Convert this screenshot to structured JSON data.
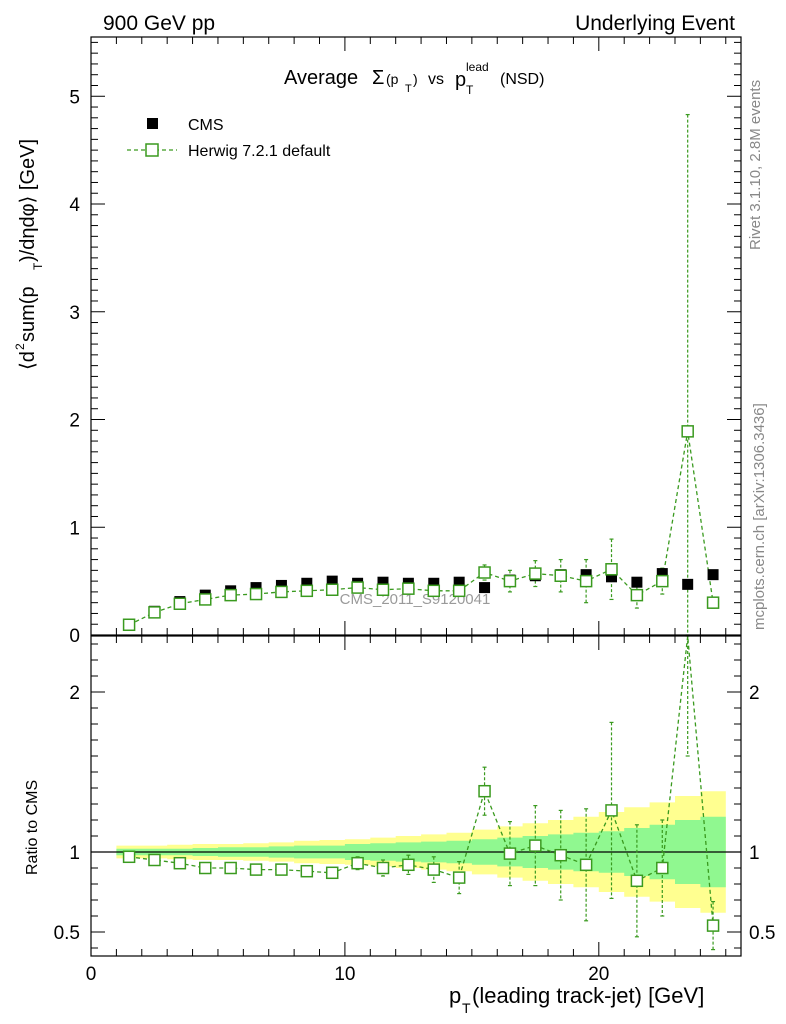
{
  "header": {
    "left": "900 GeV pp",
    "right": "Underlying Event"
  },
  "title": {
    "prefix": "Average",
    "sigma": "Σ",
    "pt_open": "(p",
    "pt_sub": "T",
    "pt_close": ")",
    "vs": "vs",
    "p": "p",
    "lead_sup": "lead",
    "t_sub": "T",
    "suffix": "(NSD)"
  },
  "side_labels": {
    "rivet": "Rivet 3.1.10,  2.8M events",
    "mcplots": "mcplots.cern.ch [arXiv:1306.3436]"
  },
  "watermark": "CMS_2011_S9120041",
  "legend": {
    "data_label": "CMS",
    "mc_label": "Herwig 7.2.1 default"
  },
  "axes": {
    "ylabel_main": {
      "open": "⟨d",
      "sup2": "2",
      "mid": " sum(p",
      "sub": "T",
      "close": ")/dηdφ⟩ [GeV]"
    },
    "ylabel_ratio": "Ratio to CMS",
    "xlabel": {
      "p": "p",
      "sub": "T",
      "rest": " (leading track-jet) [GeV]"
    },
    "x_ticks": [
      "0",
      "10",
      "20"
    ],
    "y_ticks_main": [
      "0",
      "1",
      "2",
      "3",
      "4",
      "5"
    ],
    "y_ticks_ratio": [
      "0.5",
      "1",
      "2"
    ]
  },
  "colors": {
    "data": "#000000",
    "mc": "#3a9a1f",
    "band_inner": "#90f890",
    "band_outer": "#ffff90"
  },
  "chart_data": {
    "type": "scatter",
    "xlim": [
      0,
      25.6
    ],
    "ylim_main": [
      0,
      5.55
    ],
    "ylim_ratio": [
      0.35,
      2.35
    ],
    "x": [
      1.5,
      2.5,
      3.5,
      4.5,
      5.5,
      6.5,
      7.5,
      8.5,
      9.5,
      10.5,
      11.5,
      12.5,
      13.5,
      14.5,
      15.5,
      16.5,
      17.5,
      18.5,
      19.5,
      20.5,
      21.5,
      22.5,
      23.5,
      24.5
    ],
    "series": [
      {
        "name": "CMS",
        "values": [
          0.1,
          0.22,
          0.31,
          0.37,
          0.41,
          0.44,
          0.46,
          0.48,
          0.5,
          0.48,
          0.49,
          0.48,
          0.48,
          0.49,
          0.44,
          0.51,
          0.55,
          0.56,
          0.56,
          0.54,
          0.49,
          0.57,
          0.47,
          0.56
        ]
      },
      {
        "name": "Herwig 7.2.1 default",
        "values": [
          0.095,
          0.21,
          0.29,
          0.33,
          0.37,
          0.38,
          0.4,
          0.41,
          0.42,
          0.44,
          0.42,
          0.43,
          0.41,
          0.41,
          0.58,
          0.5,
          0.57,
          0.55,
          0.5,
          0.61,
          0.37,
          0.5,
          1.89,
          0.3
        ],
        "err": [
          0.005,
          0.01,
          0.01,
          0.01,
          0.01,
          0.01,
          0.01,
          0.02,
          0.02,
          0.02,
          0.03,
          0.03,
          0.04,
          0.05,
          0.07,
          0.1,
          0.12,
          0.15,
          0.2,
          0.28,
          0.12,
          0.12,
          2.94,
          0.05
        ],
        "ratio": [
          0.97,
          0.95,
          0.93,
          0.9,
          0.9,
          0.89,
          0.89,
          0.88,
          0.87,
          0.93,
          0.9,
          0.92,
          0.89,
          0.84,
          1.38,
          0.99,
          1.04,
          0.98,
          0.92,
          1.26,
          0.82,
          0.9,
          2.4,
          0.54
        ],
        "ratio_err": [
          0.01,
          0.01,
          0.01,
          0.01,
          0.02,
          0.02,
          0.02,
          0.03,
          0.03,
          0.04,
          0.05,
          0.06,
          0.08,
          0.1,
          0.15,
          0.2,
          0.25,
          0.28,
          0.35,
          0.55,
          0.35,
          0.3,
          0.8,
          0.15
        ]
      }
    ],
    "band_inner": [
      0.02,
      0.02,
      0.02,
      0.025,
      0.03,
      0.03,
      0.035,
      0.04,
      0.04,
      0.05,
      0.055,
      0.06,
      0.065,
      0.07,
      0.08,
      0.09,
      0.1,
      0.11,
      0.12,
      0.13,
      0.15,
      0.17,
      0.2,
      0.22
    ],
    "band_outer": [
      0.04,
      0.04,
      0.045,
      0.05,
      0.05,
      0.055,
      0.06,
      0.07,
      0.075,
      0.08,
      0.09,
      0.1,
      0.11,
      0.12,
      0.14,
      0.16,
      0.18,
      0.2,
      0.22,
      0.25,
      0.28,
      0.31,
      0.35,
      0.38
    ]
  }
}
